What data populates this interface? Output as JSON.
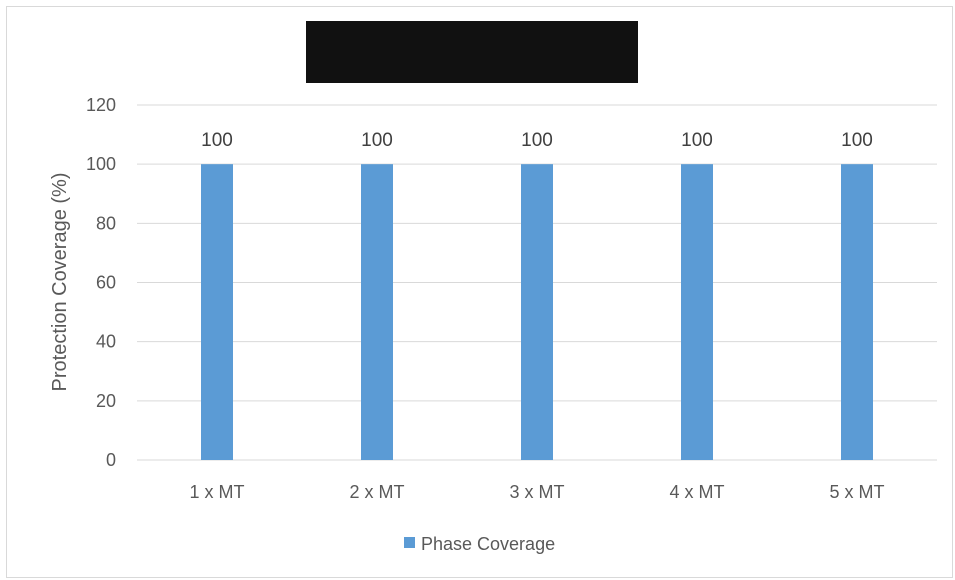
{
  "chart_data": {
    "type": "bar",
    "title": "",
    "xlabel": "",
    "ylabel": "Protection Coverage (%)",
    "categories": [
      "1 x MT",
      "2 x MT",
      "3 x MT",
      "4 x MT",
      "5 x MT"
    ],
    "series": [
      {
        "name": "Phase Coverage",
        "values": [
          100,
          100,
          100,
          100,
          100
        ],
        "color": "#5b9bd5"
      }
    ],
    "ylim": [
      0,
      120
    ],
    "yticks": [
      0,
      20,
      40,
      60,
      80,
      100,
      120
    ],
    "data_labels": true,
    "grid": true,
    "legend": "bottom",
    "title_redacted": true
  }
}
